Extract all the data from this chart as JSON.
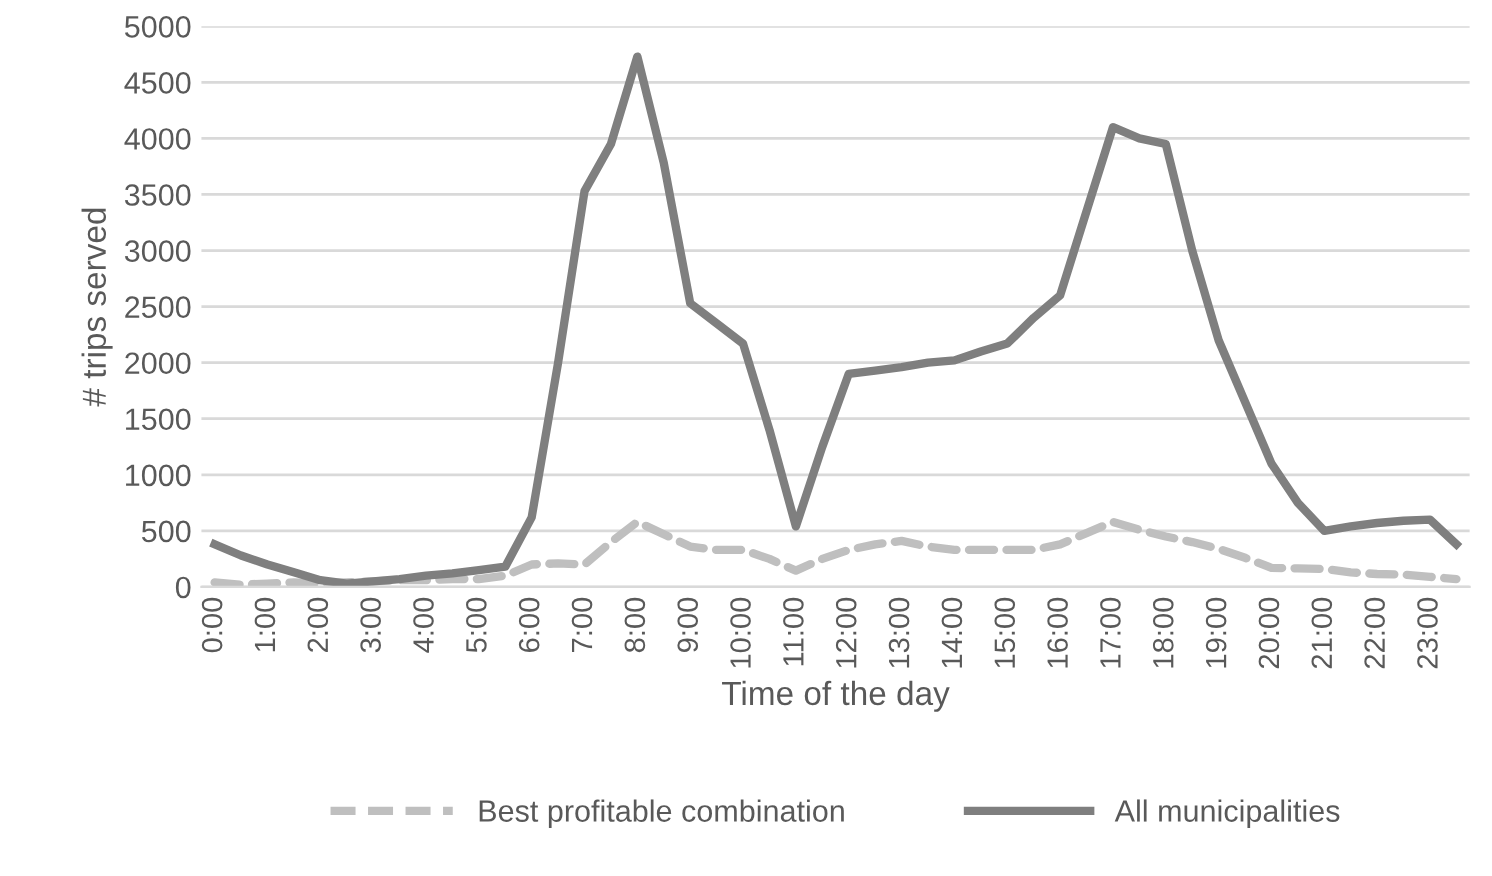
{
  "chart_data": {
    "type": "line",
    "xlabel": "Time of the day",
    "ylabel": "# trips served",
    "categories": [
      "0:00",
      null,
      "1:00",
      null,
      "2:00",
      null,
      "3:00",
      null,
      "4:00",
      null,
      "5:00",
      null,
      "6:00",
      null,
      "7:00",
      null,
      "8:00",
      null,
      "9:00",
      null,
      "10:00",
      null,
      "11:00",
      null,
      "12:00",
      null,
      "13:00",
      null,
      "14:00",
      null,
      "15:00",
      null,
      "16:00",
      null,
      "17:00",
      null,
      "18:00",
      null,
      "19:00",
      null,
      "20:00",
      null,
      "21:00",
      null,
      "22:00",
      null,
      "23:00",
      null
    ],
    "series": [
      {
        "name": "Best profitable combination",
        "color": "#bfbfbf",
        "line_style": "dashed",
        "values": [
          40,
          20,
          30,
          40,
          30,
          40,
          50,
          60,
          60,
          70,
          70,
          100,
          200,
          210,
          200,
          400,
          580,
          470,
          360,
          330,
          330,
          250,
          145,
          250,
          330,
          380,
          410,
          360,
          330,
          330,
          330,
          330,
          380,
          480,
          580,
          510,
          450,
          400,
          340,
          260,
          170,
          165,
          160,
          130,
          115,
          110,
          90,
          70
        ]
      },
      {
        "name": "All municipalities",
        "color": "#7f7f7f",
        "line_style": "solid",
        "values": [
          380,
          280,
          200,
          130,
          60,
          30,
          50,
          70,
          100,
          120,
          150,
          180,
          620,
          2000,
          3530,
          3950,
          4730,
          3780,
          2530,
          2350,
          2170,
          1400,
          540,
          1250,
          1900,
          1930,
          1960,
          2000,
          2020,
          2100,
          2170,
          2400,
          2600,
          3350,
          4100,
          4000,
          3950,
          3000,
          2200,
          1650,
          1100,
          750,
          500,
          540,
          570,
          590,
          600,
          380
        ]
      }
    ],
    "ylim": [
      0,
      5000
    ],
    "yticks": [
      0,
      500,
      1000,
      1500,
      2000,
      2500,
      3000,
      3500,
      4000,
      4500,
      5000
    ],
    "grid": "y",
    "legend": "bottom",
    "marker": "none"
  }
}
